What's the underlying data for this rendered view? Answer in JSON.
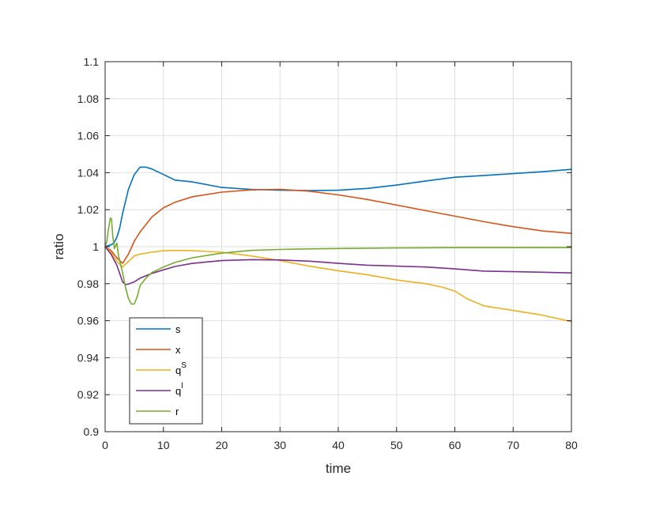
{
  "chart_data": {
    "type": "line",
    "title": "",
    "xlabel": "time",
    "ylabel": "ratio",
    "xlim": [
      0,
      80
    ],
    "ylim": [
      0.9,
      1.1
    ],
    "xticks": [
      "0",
      "10",
      "20",
      "30",
      "40",
      "50",
      "60",
      "70",
      "80"
    ],
    "yticks": [
      "0.9",
      "0.92",
      "0.94",
      "0.96",
      "0.98",
      "1",
      "1.02",
      "1.04",
      "1.06",
      "1.08",
      "1.1"
    ],
    "grid": true,
    "legend_position": "bottom-left",
    "series": [
      {
        "name": "s",
        "base": "s",
        "sup": "",
        "color": "#0072BD",
        "x": [
          0,
          0.5,
          1,
          1.5,
          2,
          2.5,
          3,
          4,
          5,
          6,
          7,
          8,
          10,
          12,
          15,
          20,
          25,
          30,
          35,
          40,
          45,
          50,
          55,
          60,
          65,
          70,
          75,
          80
        ],
        "y": [
          1.0,
          1.0005,
          1.001,
          1.002,
          1.005,
          1.01,
          1.018,
          1.031,
          1.039,
          1.043,
          1.043,
          1.042,
          1.039,
          1.036,
          1.035,
          1.032,
          1.031,
          1.0305,
          1.0303,
          1.0305,
          1.0315,
          1.0333,
          1.0355,
          1.0375,
          1.0385,
          1.0395,
          1.0405,
          1.0418
        ]
      },
      {
        "name": "x",
        "base": "x",
        "sup": "",
        "color": "#D95319",
        "x": [
          0,
          1,
          2,
          3,
          4,
          5,
          6,
          8,
          10,
          12,
          15,
          20,
          25,
          30,
          35,
          40,
          45,
          50,
          55,
          60,
          65,
          70,
          75,
          80
        ],
        "y": [
          1.0,
          0.998,
          0.994,
          0.991,
          0.996,
          1.003,
          1.008,
          1.016,
          1.021,
          1.024,
          1.027,
          1.0295,
          1.0307,
          1.031,
          1.03,
          1.028,
          1.0255,
          1.0225,
          1.0195,
          1.0165,
          1.0135,
          1.0108,
          1.0085,
          1.0072
        ]
      },
      {
        "name": "qS",
        "base": "q",
        "sup": "S",
        "color": "#EDB120",
        "x": [
          0,
          1,
          2,
          3,
          4,
          5,
          6,
          8,
          10,
          12,
          15,
          20,
          25,
          30,
          35,
          40,
          45,
          50,
          55,
          58,
          60,
          62,
          65,
          70,
          75,
          80
        ],
        "y": [
          1.0,
          0.997,
          0.992,
          0.989,
          0.992,
          0.995,
          0.996,
          0.997,
          0.9978,
          0.998,
          0.9978,
          0.997,
          0.995,
          0.9925,
          0.9895,
          0.987,
          0.9848,
          0.982,
          0.98,
          0.978,
          0.976,
          0.972,
          0.968,
          0.9655,
          0.963,
          0.9595
        ]
      },
      {
        "name": "ql",
        "base": "q",
        "sup": "l",
        "color": "#7E2F8E",
        "x": [
          0,
          1,
          2,
          3,
          3.5,
          4,
          5,
          6,
          8,
          10,
          12,
          15,
          20,
          25,
          30,
          35,
          40,
          45,
          50,
          55,
          60,
          65,
          70,
          75,
          80
        ],
        "y": [
          1.0,
          0.996,
          0.99,
          0.981,
          0.9795,
          0.9798,
          0.981,
          0.983,
          0.9855,
          0.9875,
          0.9893,
          0.991,
          0.9925,
          0.993,
          0.9928,
          0.9922,
          0.991,
          0.99,
          0.9895,
          0.989,
          0.988,
          0.9868,
          0.9865,
          0.9862,
          0.9858
        ]
      },
      {
        "name": "r",
        "base": "r",
        "sup": "",
        "color": "#77AC30",
        "x": [
          0,
          0.3,
          0.6,
          0.9,
          1.1,
          1.3,
          1.6,
          2,
          2.3,
          2.6,
          3,
          3.5,
          4,
          4.5,
          5,
          5.5,
          6,
          7,
          8,
          10,
          12,
          15,
          20,
          25,
          30,
          35,
          40,
          45,
          50,
          55,
          60,
          65,
          70,
          75,
          80
        ],
        "y": [
          1.0,
          1.003,
          1.01,
          1.0155,
          1.015,
          1.006,
          0.999,
          1.002,
          0.995,
          0.991,
          0.986,
          0.978,
          0.972,
          0.969,
          0.969,
          0.973,
          0.979,
          0.983,
          0.986,
          0.989,
          0.9915,
          0.994,
          0.9965,
          0.998,
          0.9985,
          0.9988,
          0.999,
          0.9992,
          0.9993,
          0.9994,
          0.9995,
          0.9995,
          0.9995,
          0.9995,
          0.9995
        ]
      }
    ]
  }
}
